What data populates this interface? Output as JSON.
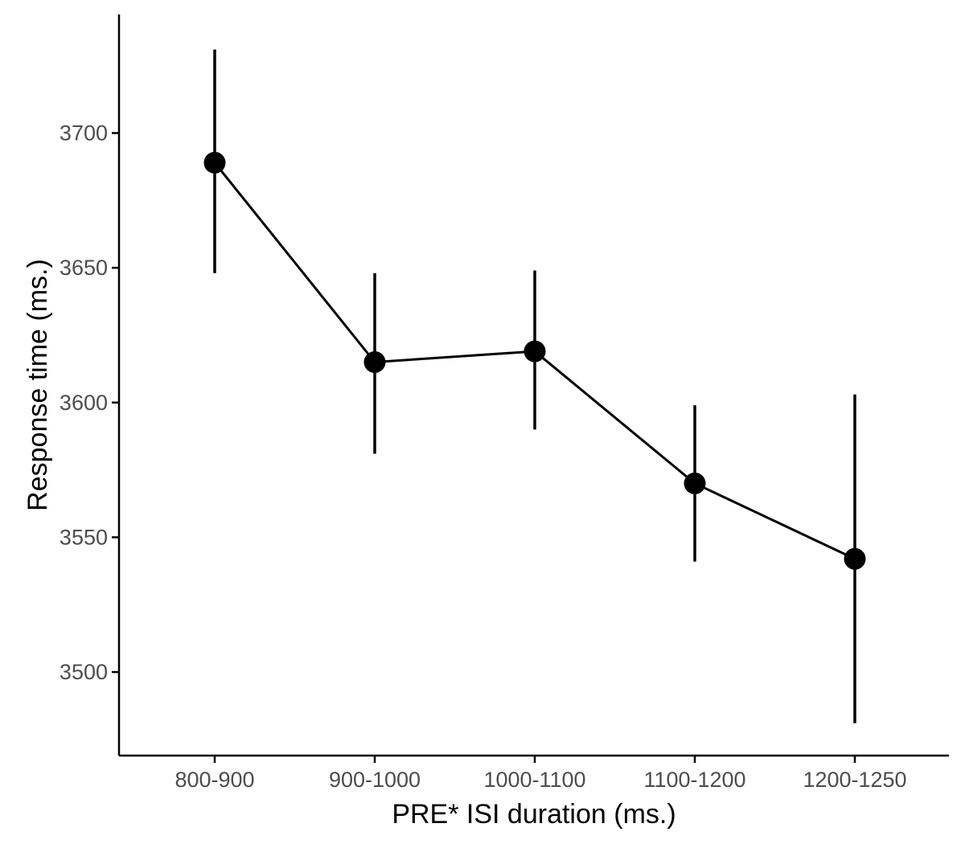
{
  "chart_data": {
    "type": "line",
    "xlabel": "PRE* ISI duration (ms.)",
    "ylabel": "Response time (ms.)",
    "categories": [
      "800-900",
      "900-1000",
      "1000-1100",
      "1100-1200",
      "1200-1250"
    ],
    "values": [
      3689,
      3615,
      3619,
      3570,
      3542
    ],
    "error_lower": [
      3648,
      3581,
      3590,
      3541,
      3481
    ],
    "error_upper": [
      3731,
      3648,
      3649,
      3599,
      3603
    ],
    "y_ticks": [
      3500,
      3550,
      3600,
      3650,
      3700
    ],
    "ylim": [
      3469,
      3744
    ],
    "grid": false,
    "colors": {
      "series": "#000000",
      "tick_text": "#4d4d4d",
      "axis": "#000000"
    }
  }
}
